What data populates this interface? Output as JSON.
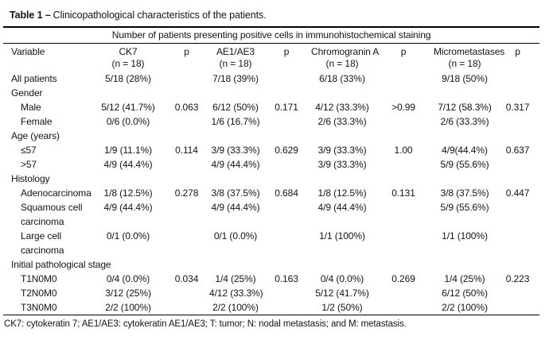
{
  "title": {
    "bold": "Table 1 –",
    "rest": "Clinicopathological characteristics of the patients."
  },
  "spanning_header": "Number of patients presenting positive cells in immunohistochemical staining",
  "columns": [
    {
      "label": "Variable",
      "sublabel": ""
    },
    {
      "label": "CK7",
      "sublabel": "(n = 18)"
    },
    {
      "label": "p",
      "sublabel": ""
    },
    {
      "label": "AE1/AE3",
      "sublabel": "(n = 18)"
    },
    {
      "label": "p",
      "sublabel": ""
    },
    {
      "label": "Chromogranin A",
      "sublabel": "(n = 18)"
    },
    {
      "label": "p",
      "sublabel": ""
    },
    {
      "label": "Micrometastases",
      "sublabel": "(n = 18)"
    },
    {
      "label": "p",
      "sublabel": ""
    }
  ],
  "rows": [
    {
      "variable": "All patients",
      "indent": false,
      "cells": [
        "5/18 (28%)",
        "",
        "7/18 (39%)",
        "",
        "6/18 (33%)",
        "",
        "9/18 (50%)",
        ""
      ]
    },
    {
      "variable": "Gender",
      "indent": false,
      "section": true
    },
    {
      "variable": "Male",
      "indent": true,
      "cells": [
        "5/12 (41.7%)",
        "0.063",
        "6/12 (50%)",
        "0.171",
        "4/12 (33.3%)",
        ">0.99",
        "7/12 (58.3%)",
        "0.317"
      ]
    },
    {
      "variable": "Female",
      "indent": true,
      "cells": [
        "0/6 (0.0%)",
        "",
        "1/6 (16.7%)",
        "",
        "2/6 (33.3%)",
        "",
        "2/6 (33.3%)",
        ""
      ]
    },
    {
      "variable": "Age (years)",
      "indent": false,
      "section": true
    },
    {
      "variable": "≤57",
      "indent": true,
      "cells": [
        "1/9 (11.1%)",
        "0.114",
        "3/9 (33.3%)",
        "0.629",
        "3/9 (33.3%)",
        "1.00",
        "4/9(44.4%)",
        "0.637"
      ]
    },
    {
      "variable": ">57",
      "indent": true,
      "cells": [
        "4/9 (44.4%)",
        "",
        "4/9 (44.4%)",
        "",
        "3/9 (33.3%)",
        "",
        "5/9 (55.6%)",
        ""
      ]
    },
    {
      "variable": "Histology",
      "indent": false,
      "section": true
    },
    {
      "variable": "Adenocarcinoma",
      "indent": true,
      "cells": [
        "1/8 (12.5%)",
        "0.278",
        "3/8 (37.5%)",
        "0.684",
        "1/8 (12.5%)",
        "0.131",
        "3/8 (37.5%)",
        "0.447"
      ]
    },
    {
      "variable": "Squamous cell carcinoma",
      "indent": true,
      "cells": [
        "4/9 (44.4%)",
        "",
        "4/9 (44.4%)",
        "",
        "4/9 (44.4%)",
        "",
        "5/9 (55.6%)",
        ""
      ]
    },
    {
      "variable": "Large cell carcinoma",
      "indent": true,
      "cells": [
        "0/1 (0.0%)",
        "",
        "0/1 (0.0%)",
        "",
        "1/1 (100%)",
        "",
        "1/1 (100%)",
        ""
      ]
    },
    {
      "variable": "Initial pathological stage",
      "indent": false,
      "section": true
    },
    {
      "variable": "T1N0M0",
      "indent": true,
      "cells": [
        "0/4 (0.0%)",
        "0.034",
        "1/4 (25%)",
        "0.163",
        "0/4 (0.0%)",
        "0.269",
        "1/4 (25%)",
        "0.223"
      ]
    },
    {
      "variable": "T2N0M0",
      "indent": true,
      "cells": [
        "3/12 (25%)",
        "",
        "4/12 (33.3%)",
        "",
        "5/12 (41.7%)",
        "",
        "6/12 (50%)",
        ""
      ]
    },
    {
      "variable": "T3N0M0",
      "indent": true,
      "cells": [
        "2/2 (100%)",
        "",
        "2/2 (100%)",
        "",
        "1/2 (50%)",
        "",
        "2/2 (100%)",
        ""
      ]
    }
  ],
  "footnote": "CK7: cytokeratin 7; AE1/AE3: cytokeratin AE1/AE3; T: tumor; N: nodal metastasis; and M: metastasis.",
  "colors": {
    "background": "#ffffff",
    "text": "#141414",
    "rule": "#000000"
  }
}
